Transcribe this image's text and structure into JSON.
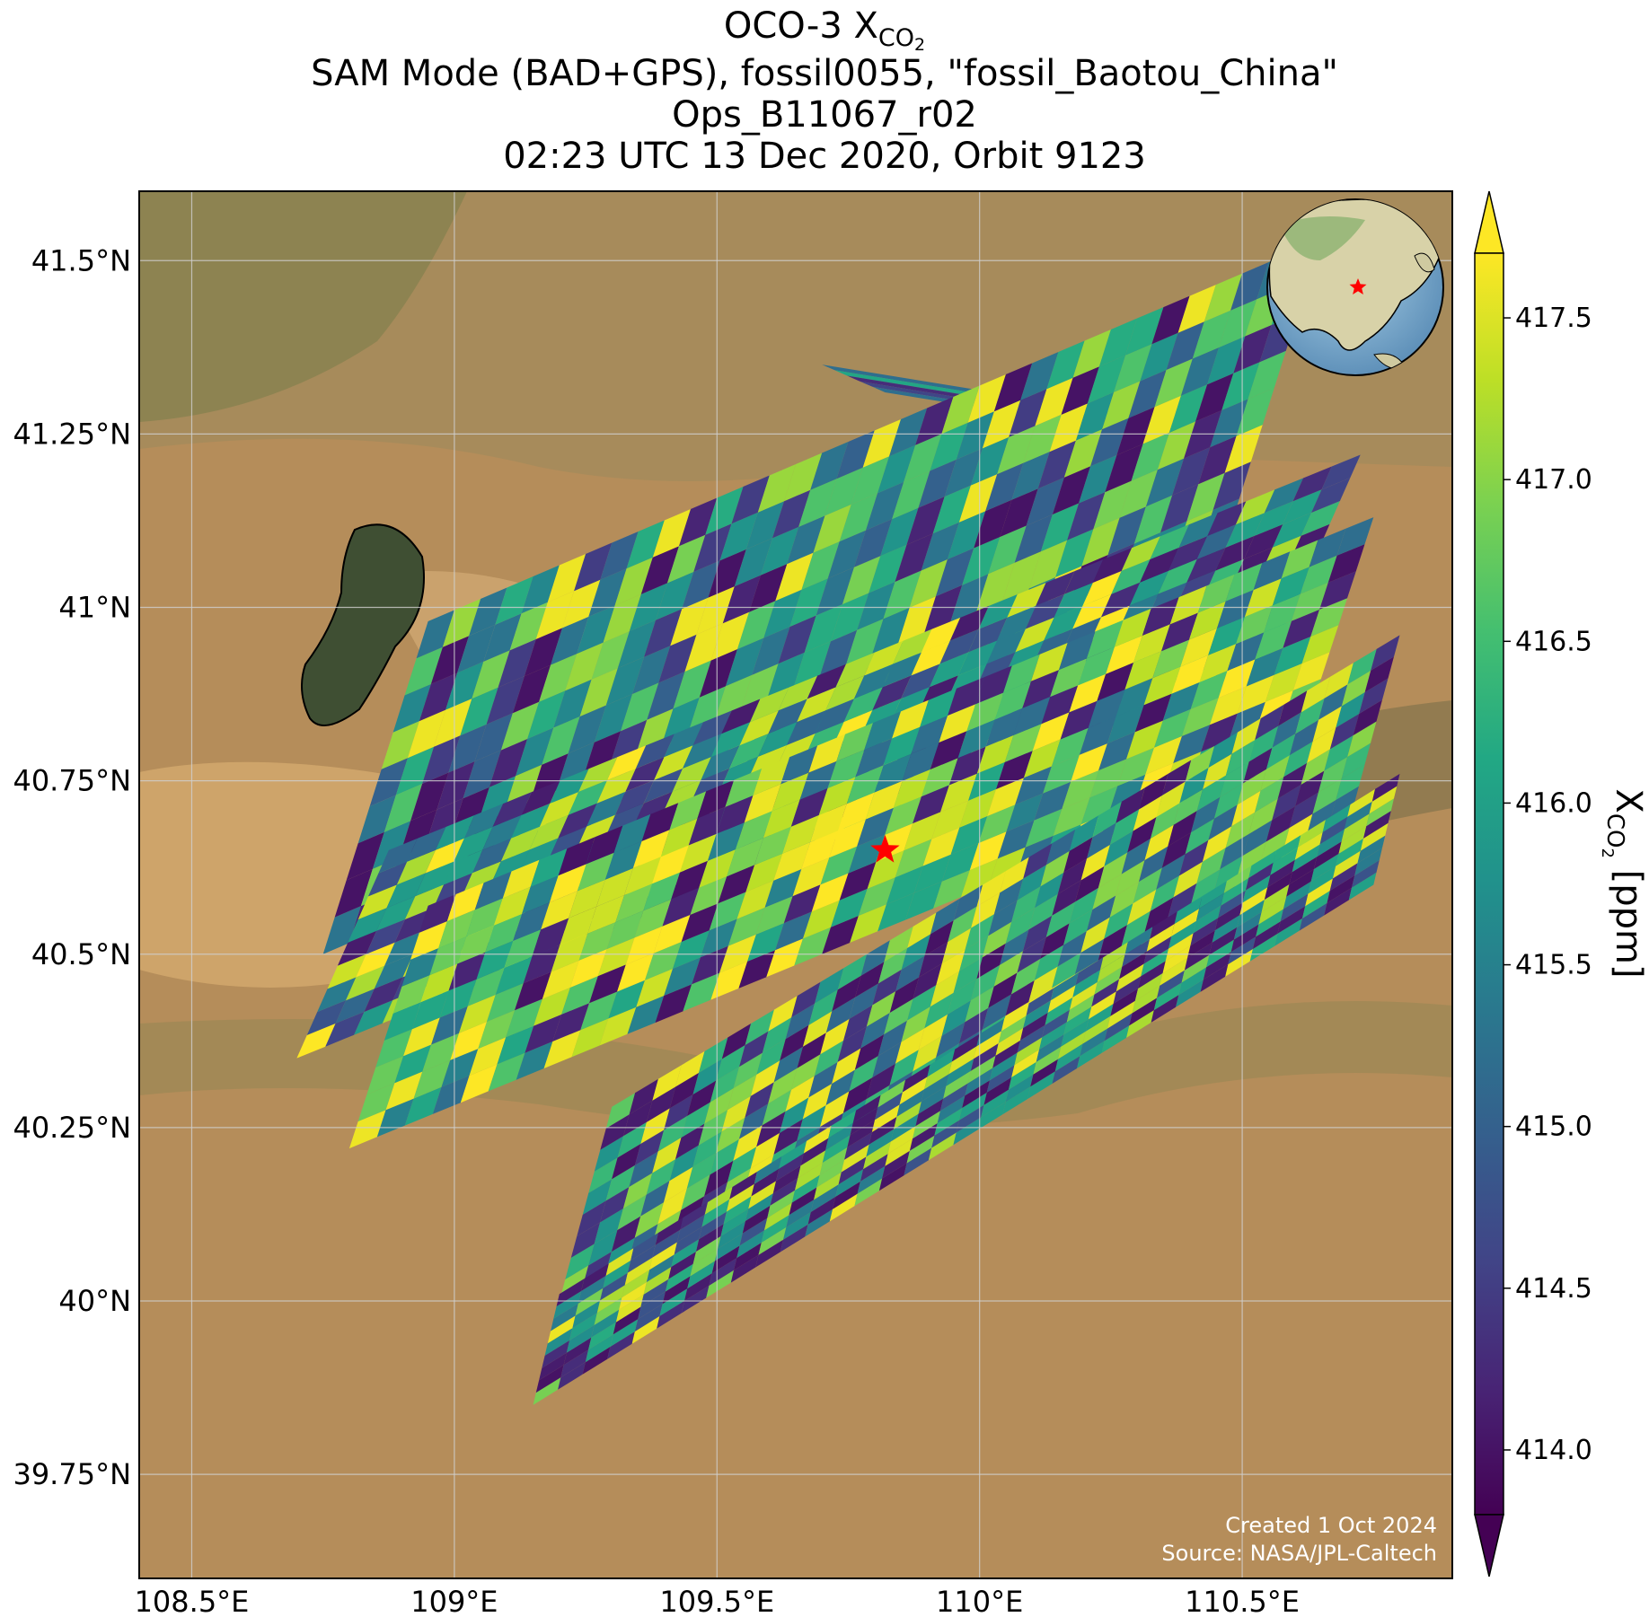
{
  "title": {
    "line1_main": "OCO-3 X",
    "line1_sub": "CO",
    "line1_subsub": "2",
    "line2": "SAM Mode (BAD+GPS), fossil0055, \"fossil_Baotou_China\"",
    "line3": "Ops_B11067_r02",
    "line4": "02:23 UTC 13 Dec 2020, Orbit 9123"
  },
  "map": {
    "lon_range": [
      108.4,
      110.9
    ],
    "lat_range": [
      39.6,
      41.6
    ],
    "lon_ticks": [
      {
        "value": 108.5,
        "label": "108.5°E"
      },
      {
        "value": 109.0,
        "label": "109°E"
      },
      {
        "value": 109.5,
        "label": "109.5°E"
      },
      {
        "value": 110.0,
        "label": "110°E"
      },
      {
        "value": 110.5,
        "label": "110.5°E"
      }
    ],
    "lat_ticks": [
      {
        "value": 41.5,
        "label": "41.5°N"
      },
      {
        "value": 41.25,
        "label": "41.25°N"
      },
      {
        "value": 41.0,
        "label": "41°N"
      },
      {
        "value": 40.75,
        "label": "40.75°N"
      },
      {
        "value": 40.5,
        "label": "40.5°N"
      },
      {
        "value": 40.25,
        "label": "40.25°N"
      },
      {
        "value": 40.0,
        "label": "40°N"
      },
      {
        "value": 39.75,
        "label": "39.75°N"
      }
    ],
    "target": {
      "name": "fossil_Baotou_China",
      "lon": 109.82,
      "lat": 40.65,
      "marker_color": "#ff0000"
    },
    "credit_line1": "Created 1 Oct 2024",
    "credit_line2": "Source: NASA/JPL-Caltech",
    "background_color": "#b58d5a"
  },
  "colorbar": {
    "label_main": "X",
    "label_sub": "CO",
    "label_subsub": "2",
    "label_unit": " [ppm]",
    "min": 413.8,
    "max": 417.7,
    "colormap": "viridis",
    "extend": "both",
    "ticks": [
      {
        "value": 414.0,
        "label": "414.0"
      },
      {
        "value": 414.5,
        "label": "414.5"
      },
      {
        "value": 415.0,
        "label": "415.0"
      },
      {
        "value": 415.5,
        "label": "415.5"
      },
      {
        "value": 416.0,
        "label": "416.0"
      },
      {
        "value": 416.5,
        "label": "416.5"
      },
      {
        "value": 417.0,
        "label": "417.0"
      },
      {
        "value": 417.5,
        "label": "417.5"
      }
    ]
  },
  "swaths": [
    {
      "lon": [
        109.7,
        109.82
      ],
      "lat": [
        41.35,
        41.31
      ],
      "dir": [
        0.26,
        0.08
      ],
      "values": [
        414.3,
        414.6,
        415.2,
        416.1,
        414.0,
        417.6
      ]
    },
    {
      "lon": [
        108.75,
        110.45
      ],
      "lat": [
        40.5,
        41.05
      ],
      "dir": [
        0.08,
        -0.48
      ],
      "values": [
        415.3,
        416.6,
        414.2,
        417.1,
        415.8,
        414.0,
        416.2,
        417.6,
        415.0,
        414.5,
        416.9,
        415.6
      ]
    },
    {
      "lon": [
        108.7,
        110.55
      ],
      "lat": [
        40.35,
        40.92
      ],
      "dir": [
        0.07,
        -0.3
      ],
      "values": [
        414.1,
        415.9,
        417.2,
        414.8,
        416.4,
        415.1,
        417.7,
        414.3,
        416.0,
        415.4,
        417.4,
        414.6
      ]
    },
    {
      "lon": [
        108.8,
        110.6
      ],
      "lat": [
        40.22,
        40.78
      ],
      "dir": [
        0.06,
        -0.35
      ],
      "values": [
        417.6,
        416.8,
        415.2,
        417.4,
        416.1,
        414.0,
        417.7,
        416.6,
        415.5,
        417.3,
        414.2,
        416.9
      ]
    },
    {
      "lon": [
        109.2,
        110.7
      ],
      "lat": [
        40.0,
        40.68
      ],
      "dir": [
        0.04,
        -0.28
      ],
      "values": [
        416.3,
        417.5,
        415.1,
        417.6,
        416.7,
        414.4,
        417.0,
        415.8,
        414.1,
        416.4,
        414.0,
        415.2
      ]
    },
    {
      "lon": [
        109.15,
        110.75
      ],
      "lat": [
        39.85,
        40.6
      ],
      "dir": [
        0.02,
        -0.16
      ],
      "values": [
        416.9,
        417.2,
        414.3,
        416.0,
        417.5,
        415.4,
        414.8,
        417.6,
        416.2,
        414.1,
        414.0,
        415.7
      ]
    }
  ]
}
